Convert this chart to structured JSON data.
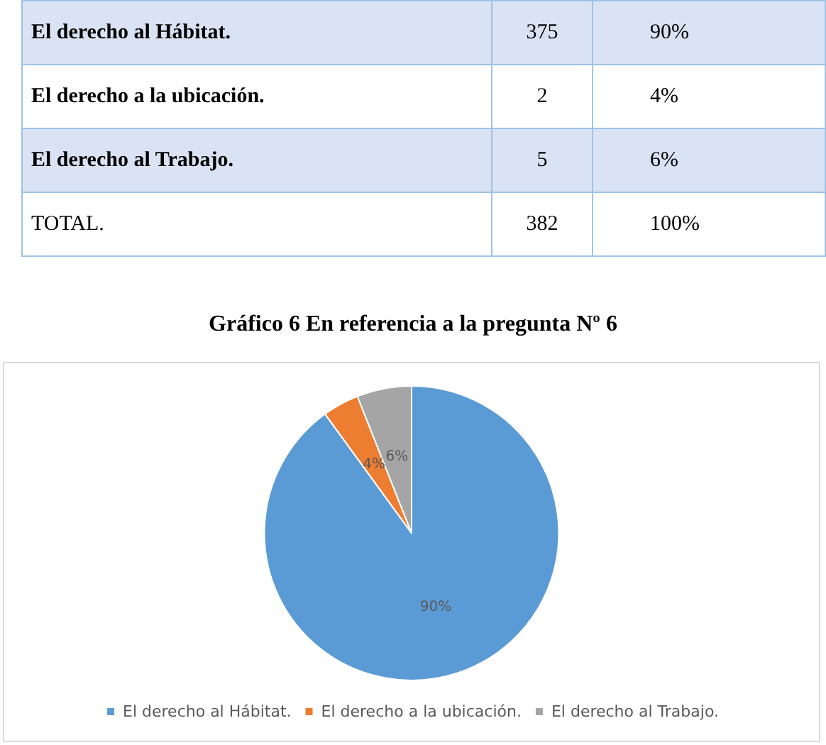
{
  "chart_data": {
    "type": "pie",
    "title": "Gráfico 6 En referencia a la pregunta Nº 6",
    "categories": [
      "El derecho al Hábitat.",
      "El derecho a la ubicación.",
      "El derecho al Trabajo."
    ],
    "values": [
      90,
      4,
      6
    ],
    "colors": [
      "#5b9bd5",
      "#ed7d31",
      "#a5a5a5"
    ],
    "value_labels": [
      "90%",
      "4%",
      "6%"
    ],
    "legend": "bottom",
    "annotations": [
      "El derecho al Hábitat.",
      "375",
      "90%",
      "El derecho a la ubicación.",
      "2",
      "4%",
      "El derecho al Trabajo.",
      "5",
      "6%",
      "TOTAL.",
      "382",
      "100%"
    ]
  }
}
